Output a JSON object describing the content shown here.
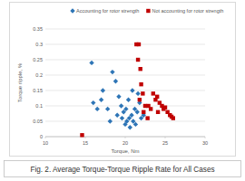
{
  "chart_data": {
    "type": "scatter",
    "title": "Fig. 2. Average Torque-Torque Ripple Rate for All Cases",
    "x_label": "Torque, Nm",
    "y_label": "Torque ripple, %",
    "xlim": [
      10,
      30
    ],
    "xticks": [
      10,
      15,
      20,
      25,
      30
    ],
    "ylim": [
      0,
      0.35
    ],
    "yticks": [
      0,
      0.05,
      0.1,
      0.15,
      0.2,
      0.25,
      0.3,
      0.35
    ],
    "grid": true,
    "legend": "top",
    "series": [
      {
        "name": "Accounting for rotor strength",
        "color": "#2e75b6",
        "marker": "diamond",
        "x": [
          15.8,
          17.2,
          17.0,
          16.5,
          17.8,
          18.4,
          18.8,
          19.2,
          19.5,
          19.0,
          19.6,
          20.0,
          20.2,
          20.5,
          20.8,
          21.0,
          21.2,
          21.5,
          21.8,
          20.4,
          20.9,
          21.6,
          19.8,
          20.6,
          22.0,
          21.3,
          20.1,
          18.1,
          16.0,
          22.3
        ],
        "values": [
          0.24,
          0.15,
          0.12,
          0.09,
          0.09,
          0.21,
          0.18,
          0.13,
          0.1,
          0.07,
          0.06,
          0.04,
          0.05,
          0.06,
          0.07,
          0.05,
          0.09,
          0.08,
          0.11,
          0.12,
          0.15,
          0.14,
          0.08,
          0.03,
          0.06,
          0.04,
          0.09,
          0.05,
          0.11,
          0.07
        ]
      },
      {
        "name": "Not accounting for rotor strength",
        "color": "#c00000",
        "marker": "square",
        "x": [
          14.6,
          21.4,
          21.7,
          21.6,
          21.9,
          22.0,
          22.2,
          21.8,
          22.5,
          22.3,
          22.8,
          23.5,
          23.8,
          24.0,
          24.3,
          24.6,
          24.8,
          25.0,
          25.3,
          25.6,
          26.0,
          23.2,
          24.1,
          22.9,
          25.8
        ],
        "values": [
          0.005,
          0.3,
          0.3,
          0.25,
          0.22,
          0.17,
          0.14,
          0.12,
          0.1,
          0.08,
          0.06,
          0.14,
          0.12,
          0.13,
          0.11,
          0.1,
          0.09,
          0.095,
          0.08,
          0.07,
          0.06,
          0.09,
          0.08,
          0.1,
          0.065
        ]
      }
    ]
  }
}
